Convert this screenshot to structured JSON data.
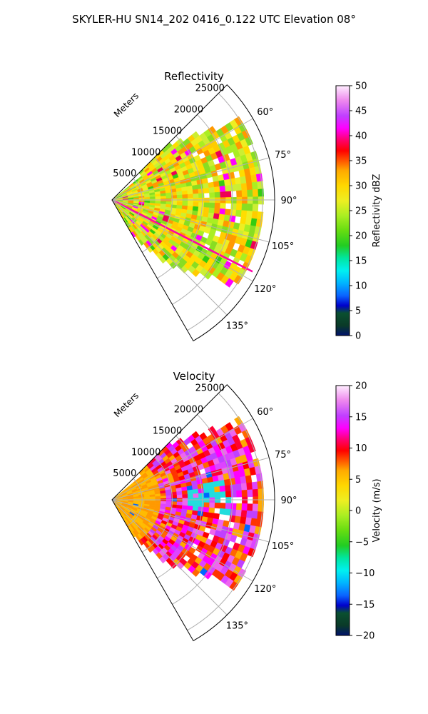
{
  "figure": {
    "suptitle": "SKYLER-HU  SN14_202  0416_0.122 UTC Elevation 08°"
  },
  "chart_data": [
    {
      "type": "heatmap",
      "title": "Reflectivity",
      "projection": "polar-sector",
      "theta_range_deg": [
        45,
        150
      ],
      "r_range_m": [
        0,
        27000
      ],
      "radial_label": "Meters",
      "r_ticks": [
        5000,
        10000,
        15000,
        20000,
        25000
      ],
      "theta_ticks": [
        "60°",
        "75°",
        "90°",
        "105°",
        "120°",
        "135°"
      ],
      "grid": true,
      "colorbar": {
        "label": "Reflectivity dBZ",
        "range": [
          0,
          50
        ],
        "ticks": [
          "0",
          "5",
          "10",
          "15",
          "20",
          "25",
          "30",
          "35",
          "40",
          "45",
          "50"
        ]
      }
    },
    {
      "type": "heatmap",
      "title": "Velocity",
      "projection": "polar-sector",
      "theta_range_deg": [
        45,
        150
      ],
      "r_range_m": [
        0,
        27000
      ],
      "radial_label": "Meters",
      "r_ticks": [
        5000,
        10000,
        15000,
        20000,
        25000
      ],
      "theta_ticks": [
        "60°",
        "75°",
        "90°",
        "105°",
        "120°",
        "135°"
      ],
      "grid": true,
      "colorbar": {
        "label": "Velocity (m/s)",
        "range": [
          -20,
          20
        ],
        "ticks": [
          "−20",
          "−15",
          "−10",
          "−5",
          "0",
          "5",
          "10",
          "15",
          "20"
        ]
      }
    }
  ]
}
